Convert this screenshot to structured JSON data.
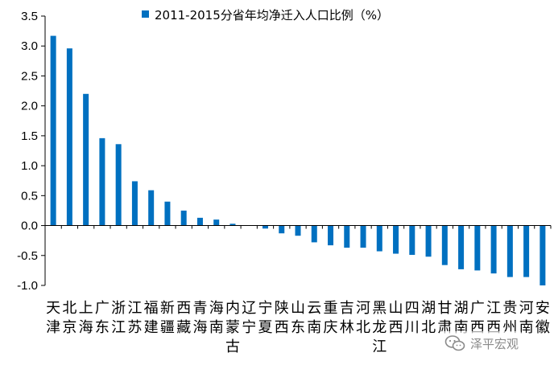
{
  "chart_data": {
    "type": "bar",
    "legend": {
      "label": "2011-2015分省年均净迁入人口比例（%）",
      "color": "#0070C0"
    },
    "categories": [
      [
        "天",
        "津"
      ],
      [
        "北",
        "京"
      ],
      [
        "上",
        "海"
      ],
      [
        "广",
        "东"
      ],
      [
        "浙",
        "江"
      ],
      [
        "江",
        "苏"
      ],
      [
        "福",
        "建"
      ],
      [
        "新",
        "疆"
      ],
      [
        "西",
        "藏"
      ],
      [
        "青",
        "海"
      ],
      [
        "海",
        "南"
      ],
      [
        "内",
        "蒙",
        "古"
      ],
      [
        "辽",
        "宁"
      ],
      [
        "宁",
        "夏"
      ],
      [
        "陕",
        "西"
      ],
      [
        "山",
        "东"
      ],
      [
        "云",
        "南"
      ],
      [
        "重",
        "庆"
      ],
      [
        "吉",
        "林"
      ],
      [
        "河",
        "北"
      ],
      [
        "黑",
        "龙",
        "江"
      ],
      [
        "山",
        "西"
      ],
      [
        "四",
        "川"
      ],
      [
        "湖",
        "北"
      ],
      [
        "甘",
        "肃"
      ],
      [
        "湖",
        "南"
      ],
      [
        "广",
        "西"
      ],
      [
        "江",
        "西"
      ],
      [
        "贵",
        "州"
      ],
      [
        "河",
        "南"
      ],
      [
        "安",
        "徽"
      ]
    ],
    "values": [
      3.17,
      2.96,
      2.2,
      1.46,
      1.36,
      0.74,
      0.59,
      0.4,
      0.25,
      0.13,
      0.1,
      0.03,
      0.0,
      -0.05,
      -0.13,
      -0.17,
      -0.28,
      -0.33,
      -0.37,
      -0.37,
      -0.43,
      -0.47,
      -0.49,
      -0.52,
      -0.66,
      -0.73,
      -0.75,
      -0.8,
      -0.86,
      -0.86,
      -1.0
    ],
    "yticks": [
      "3.5",
      "3.0",
      "2.5",
      "2.0",
      "1.5",
      "1.0",
      "0.5",
      "0.0",
      "-0.5",
      "-1.0"
    ],
    "ylim": [
      -1.0,
      3.5
    ],
    "bar_color": "#0070C0"
  },
  "watermark": {
    "text": "泽平宏观",
    "icon": "wechat-icon"
  }
}
